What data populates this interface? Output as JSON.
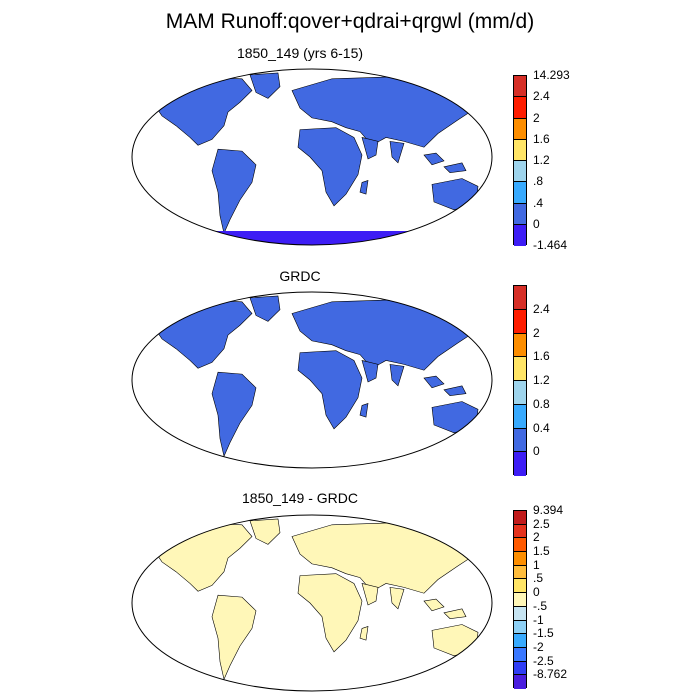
{
  "title": "MAM Runoff:qover+qdrai+qrgwl (mm/d)",
  "panels": [
    {
      "title": "1850_149 (yrs 6-15)",
      "colorbar": {
        "labels": [
          "14.293",
          "2.4",
          "2",
          "1.6",
          "1.2",
          ".8",
          ".4",
          "0",
          "-1.464"
        ],
        "colors": [
          "#d62f27",
          "#fe1d00",
          "#fd8e00",
          "#ffe566",
          "#9ed4ec",
          "#38aafe",
          "#4169e1",
          "#3d1df5"
        ]
      }
    },
    {
      "title": "GRDC",
      "colorbar": {
        "labels": [
          "2.4",
          "2",
          "1.6",
          "1.2",
          "0.8",
          "0.4",
          "0"
        ],
        "colors": [
          "#d62f27",
          "#fe1d00",
          "#fd8e00",
          "#ffe566",
          "#9ed4ec",
          "#38aafe",
          "#4169e1",
          "#3d1df5"
        ]
      }
    },
    {
      "title": "1850_149 - GRDC",
      "colorbar": {
        "labels": [
          "9.394",
          "2.5",
          "2",
          "1.5",
          "1",
          ".5",
          "0",
          "-.5",
          "-1",
          "-1.5",
          "-2",
          "-2.5",
          "-8.762"
        ],
        "colors": [
          "#c11b1b",
          "#e5321c",
          "#ff5a00",
          "#fd8e00",
          "#ffbd3c",
          "#ffe566",
          "#fff7b8",
          "#c6e4f2",
          "#8dd0f5",
          "#38aafe",
          "#3a78ff",
          "#2f3df5",
          "#4a1ddf"
        ]
      }
    }
  ]
}
